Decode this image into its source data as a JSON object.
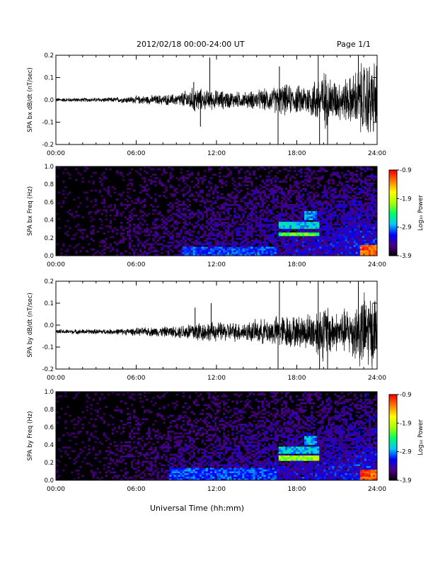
{
  "header": {
    "date_range": "2012/02/18   00:00-24:00 UT",
    "page": "Page 1/1"
  },
  "xlabel": "Universal Time (hh:mm)",
  "colorbar": {
    "label": "Log₁₀ Power",
    "ticks": [
      "-0.9",
      "-1.9",
      "-2.9",
      "-3.9"
    ],
    "range": [
      -3.9,
      -0.9
    ],
    "colors": [
      "#000000",
      "#4b0082",
      "#0000ff",
      "#00c8ff",
      "#00ff64",
      "#aaff00",
      "#ffff00",
      "#ff8000",
      "#ff0000"
    ]
  },
  "chart_data": [
    {
      "type": "line",
      "name": "bx_waveform",
      "ylabel": "SPA bx dB/dt (nT/sec)",
      "xlim": [
        0,
        24
      ],
      "ylim": [
        -0.2,
        0.2
      ],
      "xticks": [
        "00:00",
        "06:00",
        "12:00",
        "18:00",
        "24:00"
      ],
      "yticks": [
        "0.2",
        "0.1",
        "0.0",
        "-0.1",
        "-0.2"
      ],
      "baseline": 0.0,
      "envelope": {
        "hours": [
          0,
          4,
          6,
          9,
          10.5,
          11,
          12,
          14,
          16,
          17,
          18,
          19,
          20,
          21,
          22,
          23,
          24
        ],
        "amplitude": [
          0.01,
          0.012,
          0.02,
          0.03,
          0.07,
          0.05,
          0.05,
          0.04,
          0.06,
          0.08,
          0.07,
          0.09,
          0.15,
          0.1,
          0.12,
          0.2,
          0.2
        ]
      },
      "spikes": [
        {
          "hour": 10.3,
          "value": 0.08
        },
        {
          "hour": 10.8,
          "value": -0.12
        },
        {
          "hour": 11.5,
          "value": 0.19
        },
        {
          "hour": 16.6,
          "value": -0.2
        },
        {
          "hour": 16.7,
          "value": 0.15
        },
        {
          "hour": 19.6,
          "value": 0.2
        },
        {
          "hour": 19.7,
          "value": -0.2
        },
        {
          "hour": 20.3,
          "value": -0.2
        },
        {
          "hour": 22.6,
          "value": 0.2
        }
      ]
    },
    {
      "type": "heatmap",
      "name": "bx_spectrogram",
      "ylabel": "SPA bx Freq (Hz)",
      "xlim": [
        0,
        24
      ],
      "ylim": [
        0,
        1.0
      ],
      "xticks": [
        "00:00",
        "06:00",
        "12:00",
        "18:00",
        "24:00"
      ],
      "yticks": [
        "1.0",
        "0.8",
        "0.6",
        "0.4",
        "0.2",
        "0.0"
      ],
      "zrange": [
        -3.9,
        -0.9
      ],
      "bands": [
        {
          "t0": 16.6,
          "t1": 19.6,
          "f0": 0.21,
          "f1": 0.26,
          "level": -2.2
        },
        {
          "t0": 16.6,
          "t1": 19.6,
          "f0": 0.3,
          "f1": 0.38,
          "level": -2.7
        },
        {
          "t0": 18.6,
          "t1": 19.5,
          "f0": 0.4,
          "f1": 0.5,
          "level": -2.8
        },
        {
          "t0": 9.5,
          "t1": 16.5,
          "f0": 0.0,
          "f1": 0.1,
          "level": -3.0
        },
        {
          "t0": 22.8,
          "t1": 24.0,
          "f0": 0.0,
          "f1": 0.12,
          "level": -1.1
        }
      ]
    },
    {
      "type": "line",
      "name": "by_waveform",
      "ylabel": "SPA by dB/dt (nT/sec)",
      "xlim": [
        0,
        24
      ],
      "ylim": [
        -0.2,
        0.2
      ],
      "xticks": [
        "00:00",
        "06:00",
        "12:00",
        "18:00",
        "24:00"
      ],
      "yticks": [
        "0.2",
        "0.1",
        "0.0",
        "-0.1",
        "-0.2"
      ],
      "baseline": -0.03,
      "envelope": {
        "hours": [
          0,
          4,
          6,
          9,
          10.5,
          11,
          12,
          14,
          16,
          17,
          18,
          19,
          20,
          21,
          22,
          23,
          24
        ],
        "amplitude": [
          0.012,
          0.014,
          0.02,
          0.03,
          0.06,
          0.05,
          0.05,
          0.05,
          0.07,
          0.09,
          0.08,
          0.1,
          0.15,
          0.1,
          0.13,
          0.2,
          0.2
        ]
      },
      "spikes": [
        {
          "hour": 10.4,
          "value": 0.08
        },
        {
          "hour": 11.6,
          "value": 0.1
        },
        {
          "hour": 16.6,
          "value": -0.2
        },
        {
          "hour": 16.7,
          "value": 0.2
        },
        {
          "hour": 19.6,
          "value": 0.2
        },
        {
          "hour": 19.7,
          "value": -0.2
        },
        {
          "hour": 20.3,
          "value": -0.2
        },
        {
          "hour": 22.6,
          "value": 0.2
        }
      ]
    },
    {
      "type": "heatmap",
      "name": "by_spectrogram",
      "ylabel": "SPA by Freq (Hz)",
      "xlim": [
        0,
        24
      ],
      "ylim": [
        0,
        1.0
      ],
      "xticks": [
        "00:00",
        "06:00",
        "12:00",
        "18:00",
        "24:00"
      ],
      "yticks": [
        "1.0",
        "0.8",
        "0.6",
        "0.4",
        "0.2",
        "0.0"
      ],
      "zrange": [
        -3.9,
        -0.9
      ],
      "bands": [
        {
          "t0": 16.6,
          "t1": 19.6,
          "f0": 0.21,
          "f1": 0.27,
          "level": -2.0
        },
        {
          "t0": 16.6,
          "t1": 19.6,
          "f0": 0.3,
          "f1": 0.38,
          "level": -2.7
        },
        {
          "t0": 18.6,
          "t1": 19.5,
          "f0": 0.4,
          "f1": 0.5,
          "level": -2.8
        },
        {
          "t0": 8.5,
          "t1": 16.5,
          "f0": 0.0,
          "f1": 0.14,
          "level": -3.0
        },
        {
          "t0": 22.8,
          "t1": 24.0,
          "f0": 0.0,
          "f1": 0.12,
          "level": -1.1
        }
      ]
    }
  ]
}
